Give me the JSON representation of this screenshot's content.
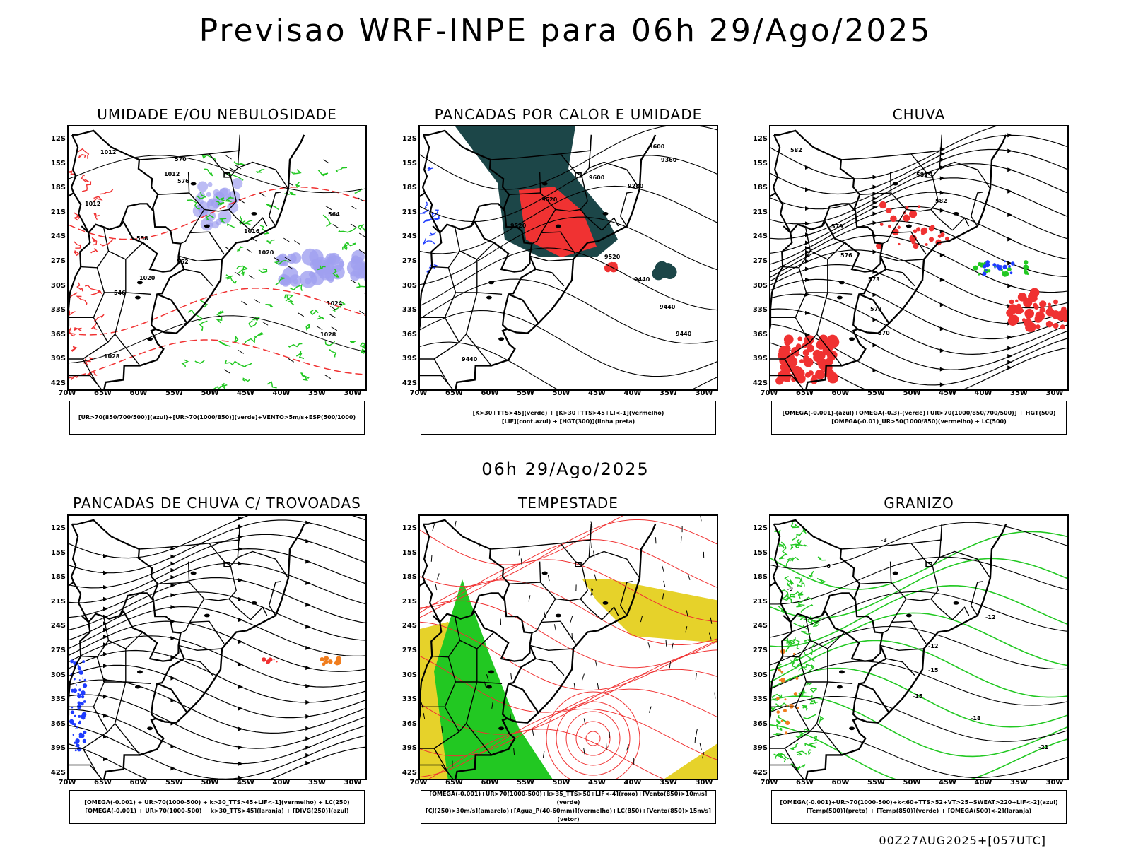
{
  "main_title": "Previsao WRF-INPE  para 06h 29/Ago/2025",
  "mid_title": "06h 29/Ago/2025",
  "footer": "00Z27AUG2025+[057UTC]",
  "lat_labels": [
    "12S",
    "15S",
    "18S",
    "21S",
    "24S",
    "27S",
    "30S",
    "33S",
    "36S",
    "39S",
    "42S"
  ],
  "lon_labels": [
    "70W",
    "65W",
    "60W",
    "55W",
    "50W",
    "45W",
    "40W",
    "35W",
    "30W"
  ],
  "panels": [
    {
      "title": "UMIDADE E/OU NEBULOSIDADE",
      "legend": [
        "[UR>70(850/700/500)](azul)+[UR>70(1000/850)](verde)+VENTO>5m/s+ESP(500/1000)"
      ],
      "contour_labels": [
        "1012",
        "1012",
        "1012",
        "1016",
        "1020",
        "1020",
        "1024",
        "1028",
        "1028",
        "570",
        "576",
        "564",
        "558",
        "552",
        "546"
      ]
    },
    {
      "title": "PANCADAS POR CALOR E UMIDADE",
      "legend": [
        "[K>30+TTS>45](verde) + [K>30+TTS>45+LI<-1](vermelho)",
        "[LIF](cont.azul) + [HGT(300)](linha preta)"
      ],
      "contour_labels": [
        "9600",
        "9600",
        "9520",
        "9520",
        "9520",
        "9440",
        "9440",
        "9440",
        "9440",
        "9360",
        "9280"
      ]
    },
    {
      "title": "CHUVA",
      "legend": [
        "[OMEGA(-0.001)-(azul)+OMEGA(-0.3)-(verde)+UR>70(1000/850/700/500)] + HGT(500)",
        "[OMEGA(-0.01)_UR>50(1000/850)(vermelho) + LC(500)"
      ],
      "contour_labels": [
        "582",
        "582",
        "582",
        "579",
        "576",
        "573",
        "573",
        "570"
      ]
    },
    {
      "title": "PANCADAS DE CHUVA C/ TROVOADAS",
      "legend": [
        "[OMEGA(-0.001) + UR>70(1000-500) + k>30_TTS>45+LIF<-1](vermelho) + LC(250)",
        "[OMEGA(-0.001) + UR>70(1000-500) + k>30_TTS>45](laranja) + [DIVG(250)](azul)"
      ]
    },
    {
      "title": "TEMPESTADE",
      "legend": [
        "[OMEGA(-0.001)+UR>70(1000-500)+k>35_TTS>50+LIF<-4](roxo)+[Vento(850)>10m/s](verde)",
        "[CJ(250)>30m/s](amarelo)+[Agua_P(40-60mm)](vermelho)+LC(850)+[Vento(850)>15m/s](vetor)"
      ]
    },
    {
      "title": "GRANIZO",
      "legend": [
        "[OMEGA(-0.001)+UR>70(1000-500)+k<60+TTS>52+VT>25+SWEAT>220+LIF<-2](azul)",
        "[Temp(500)](preto) + [Temp(850)](verde) + [OMEGA(500)<-2](laranja)"
      ],
      "contour_labels": [
        "-3",
        "-6",
        "-9",
        "-12",
        "-12",
        "-15",
        "-15",
        "-18",
        "-21"
      ]
    }
  ],
  "colors": {
    "green": "#22c822",
    "red": "#f03232",
    "blue": "#1e3cff",
    "lavender": "#a0a0f0",
    "darkteal": "#1c4648",
    "yellow": "#e6d22a",
    "orange": "#f07d1e"
  }
}
